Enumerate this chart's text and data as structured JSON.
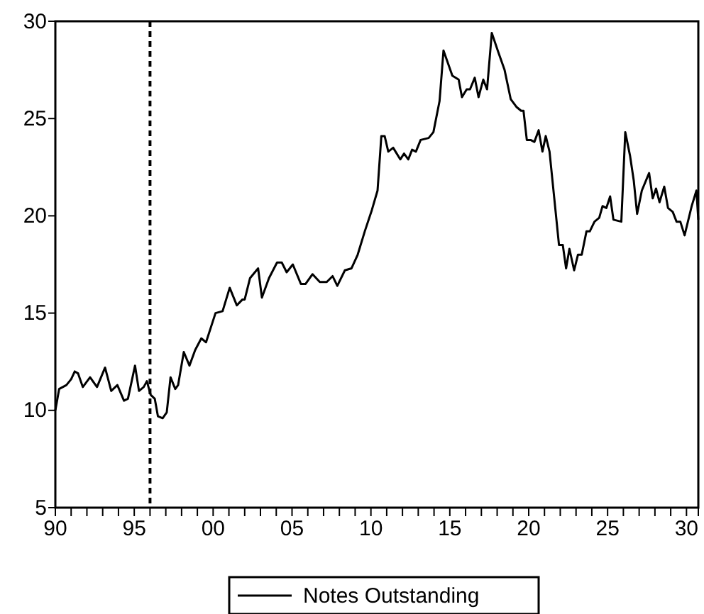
{
  "chart_data": {
    "type": "line",
    "xlim": [
      1890,
      1930.75
    ],
    "ylim": [
      5,
      30
    ],
    "yticks": [
      5,
      10,
      15,
      20,
      25,
      30
    ],
    "xticks": [
      {
        "value": 1890,
        "label": "90"
      },
      {
        "value": 1891,
        "label": null
      },
      {
        "value": 1892,
        "label": null
      },
      {
        "value": 1893,
        "label": null
      },
      {
        "value": 1894,
        "label": null
      },
      {
        "value": 1895,
        "label": "95"
      },
      {
        "value": 1896,
        "label": null
      },
      {
        "value": 1897,
        "label": null
      },
      {
        "value": 1898,
        "label": null
      },
      {
        "value": 1899,
        "label": null
      },
      {
        "value": 1900,
        "label": "00"
      },
      {
        "value": 1901,
        "label": null
      },
      {
        "value": 1902,
        "label": null
      },
      {
        "value": 1903,
        "label": null
      },
      {
        "value": 1904,
        "label": null
      },
      {
        "value": 1905,
        "label": "05"
      },
      {
        "value": 1906,
        "label": null
      },
      {
        "value": 1907,
        "label": null
      },
      {
        "value": 1908,
        "label": null
      },
      {
        "value": 1909,
        "label": null
      },
      {
        "value": 1910,
        "label": "10"
      },
      {
        "value": 1911,
        "label": null
      },
      {
        "value": 1912,
        "label": null
      },
      {
        "value": 1913,
        "label": null
      },
      {
        "value": 1914,
        "label": null
      },
      {
        "value": 1915,
        "label": "15"
      },
      {
        "value": 1916,
        "label": null
      },
      {
        "value": 1917,
        "label": null
      },
      {
        "value": 1918,
        "label": null
      },
      {
        "value": 1919,
        "label": null
      },
      {
        "value": 1920,
        "label": "20"
      },
      {
        "value": 1921,
        "label": null
      },
      {
        "value": 1922,
        "label": null
      },
      {
        "value": 1923,
        "label": null
      },
      {
        "value": 1924,
        "label": null
      },
      {
        "value": 1925,
        "label": "25"
      },
      {
        "value": 1926,
        "label": null
      },
      {
        "value": 1927,
        "label": null
      },
      {
        "value": 1928,
        "label": null
      },
      {
        "value": 1929,
        "label": null
      },
      {
        "value": 1930,
        "label": "30"
      }
    ],
    "grid": false,
    "legend": "bottom",
    "marker": "none",
    "line_style": "solid",
    "ref_lines": [
      {
        "axis": "x",
        "value": 1896,
        "label": null,
        "color": "#000000",
        "line_style": "dashed"
      }
    ],
    "series": [
      {
        "name": "Notes Outstanding",
        "color": "#000000",
        "x": [
          1890,
          1890.24,
          1890.7,
          1891,
          1891.23,
          1891.44,
          1891.74,
          1892.2,
          1892.64,
          1893.15,
          1893.54,
          1893.93,
          1894.35,
          1894.6,
          1895.05,
          1895.3,
          1895.6,
          1895.8,
          1896.04,
          1896.3,
          1896.5,
          1896.8,
          1897.06,
          1897.3,
          1897.6,
          1897.78,
          1898.14,
          1898.5,
          1898.86,
          1899.25,
          1899.55,
          1900.15,
          1900.6,
          1901.05,
          1901.5,
          1901.86,
          1902,
          1902.34,
          1902.85,
          1903.09,
          1903.54,
          1904.05,
          1904.35,
          1904.66,
          1905.05,
          1905.56,
          1905.86,
          1906.3,
          1906.76,
          1907.2,
          1907.57,
          1907.87,
          1908.35,
          1908.77,
          1909.16,
          1909.61,
          1910.06,
          1910.42,
          1910.66,
          1910.87,
          1911.1,
          1911.41,
          1911.86,
          1912.1,
          1912.37,
          1912.61,
          1912.85,
          1913.15,
          1913.66,
          1913.96,
          1914.35,
          1914.6,
          1915.16,
          1915.56,
          1915.77,
          1916.07,
          1916.28,
          1916.58,
          1916.82,
          1917.12,
          1917.36,
          1917.66,
          1918.08,
          1918.47,
          1918.86,
          1919.22,
          1919.52,
          1919.67,
          1919.88,
          1920.12,
          1920.36,
          1920.63,
          1920.87,
          1921.08,
          1921.32,
          1921.62,
          1921.92,
          1922.16,
          1922.37,
          1922.58,
          1922.88,
          1923.12,
          1923.36,
          1923.66,
          1923.87,
          1924.17,
          1924.47,
          1924.68,
          1924.92,
          1925.16,
          1925.37,
          1925.87,
          1926.12,
          1926.42,
          1926.66,
          1926.87,
          1927.17,
          1927.63,
          1927.86,
          1928.07,
          1928.29,
          1928.59,
          1928.83,
          1929.13,
          1929.37,
          1929.61,
          1929.88,
          1930.33,
          1930.63,
          1930.75
        ],
        "values": [
          10.0,
          11.1,
          11.3,
          11.6,
          12.0,
          11.9,
          11.2,
          11.7,
          11.2,
          12.2,
          11.0,
          11.3,
          10.5,
          10.6,
          12.3,
          11.0,
          11.2,
          11.5,
          10.8,
          10.6,
          9.7,
          9.6,
          9.9,
          11.7,
          11.1,
          11.3,
          13.0,
          12.3,
          13.1,
          13.7,
          13.5,
          15.0,
          15.1,
          16.3,
          15.4,
          15.7,
          15.7,
          16.8,
          17.3,
          15.8,
          16.8,
          17.6,
          17.6,
          17.1,
          17.5,
          16.5,
          16.5,
          17.0,
          16.6,
          16.6,
          16.9,
          16.4,
          17.2,
          17.3,
          18.0,
          19.2,
          20.3,
          21.3,
          24.1,
          24.1,
          23.3,
          23.5,
          22.9,
          23.2,
          22.9,
          23.4,
          23.3,
          23.9,
          24.0,
          24.3,
          25.9,
          28.5,
          27.2,
          27.0,
          26.1,
          26.5,
          26.5,
          27.1,
          26.1,
          27.0,
          26.5,
          29.4,
          28.4,
          27.5,
          26.0,
          25.6,
          25.4,
          25.4,
          23.9,
          23.9,
          23.8,
          24.4,
          23.3,
          24.1,
          23.3,
          20.9,
          18.5,
          18.5,
          17.3,
          18.3,
          17.2,
          18.0,
          18.0,
          19.2,
          19.2,
          19.7,
          19.9,
          20.5,
          20.4,
          21.0,
          19.8,
          19.7,
          24.3,
          23.1,
          21.8,
          20.1,
          21.3,
          22.2,
          20.9,
          21.4,
          20.7,
          21.5,
          20.4,
          20.2,
          19.7,
          19.7,
          19.0,
          20.5,
          21.3,
          19.8
        ]
      }
    ]
  }
}
